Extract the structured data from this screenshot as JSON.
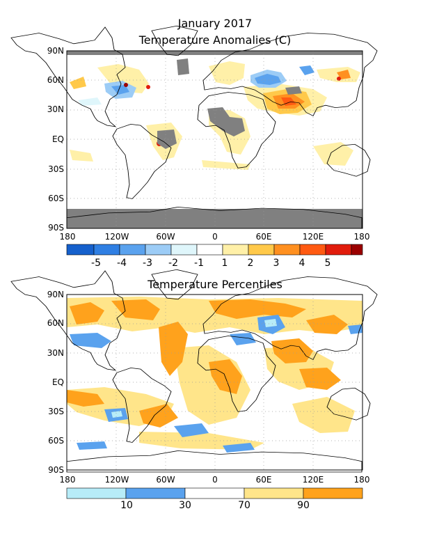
{
  "top_map": {
    "title_line1": "January 2017",
    "title_line2": "Temperature Anomalies (C)",
    "lat_labels": [
      "90N",
      "60N",
      "30N",
      "EQ",
      "30S",
      "60S",
      "90S"
    ],
    "lon_labels": [
      "180",
      "120W",
      "60W",
      "0",
      "60E",
      "120E",
      "180"
    ],
    "colorbar": {
      "labels": [
        "-5",
        "-4",
        "-3",
        "-2",
        "-1",
        "1",
        "2",
        "3",
        "4",
        "5"
      ],
      "colors": [
        "#1560cc",
        "#2f7fe3",
        "#5aa2ee",
        "#9cccf6",
        "#dff6fb",
        "#ffffff",
        "#fff0a8",
        "#ffc94a",
        "#ff9020",
        "#ff5a12",
        "#e11c0c",
        "#9b0000"
      ]
    }
  },
  "bottom_map": {
    "title": "Temperature Percentiles",
    "lat_labels": [
      "90N",
      "60N",
      "30N",
      "EQ",
      "30S",
      "60S",
      "90S"
    ],
    "lon_labels": [
      "180",
      "120W",
      "60W",
      "0",
      "60E",
      "120E",
      "180"
    ],
    "colorbar": {
      "labels": [
        "10",
        "30",
        "70",
        "90"
      ],
      "colors": [
        "#b7ecf8",
        "#5aa2ee",
        "#ffffff",
        "#ffe58a",
        "#ffa21c"
      ]
    }
  },
  "colors": {
    "no_data": "#808080",
    "coast": "#000000",
    "grid": "#9a9a9a"
  }
}
